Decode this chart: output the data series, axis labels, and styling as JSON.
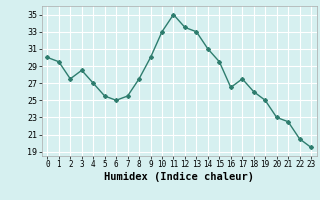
{
  "x": [
    0,
    1,
    2,
    3,
    4,
    5,
    6,
    7,
    8,
    9,
    10,
    11,
    12,
    13,
    14,
    15,
    16,
    17,
    18,
    19,
    20,
    21,
    22,
    23
  ],
  "y": [
    30,
    29.5,
    27.5,
    28.5,
    27,
    25.5,
    25,
    25.5,
    27.5,
    30,
    33,
    35,
    33.5,
    33,
    31,
    29.5,
    26.5,
    27.5,
    26,
    25,
    23,
    22.5,
    20.5,
    19.5
  ],
  "line_color": "#2e7d6e",
  "marker": "D",
  "marker_size": 2.0,
  "bg_color": "#d6f0f0",
  "grid_color": "#ffffff",
  "xlabel": "Humidex (Indice chaleur)",
  "xlim": [
    -0.5,
    23.5
  ],
  "ylim": [
    18.5,
    36
  ],
  "yticks": [
    19,
    21,
    23,
    25,
    27,
    29,
    31,
    33,
    35
  ],
  "xticks": [
    0,
    1,
    2,
    3,
    4,
    5,
    6,
    7,
    8,
    9,
    10,
    11,
    12,
    13,
    14,
    15,
    16,
    17,
    18,
    19,
    20,
    21,
    22,
    23
  ],
  "tick_labelsize": 5.5,
  "xlabel_fontsize": 7.5,
  "line_width": 1.0
}
